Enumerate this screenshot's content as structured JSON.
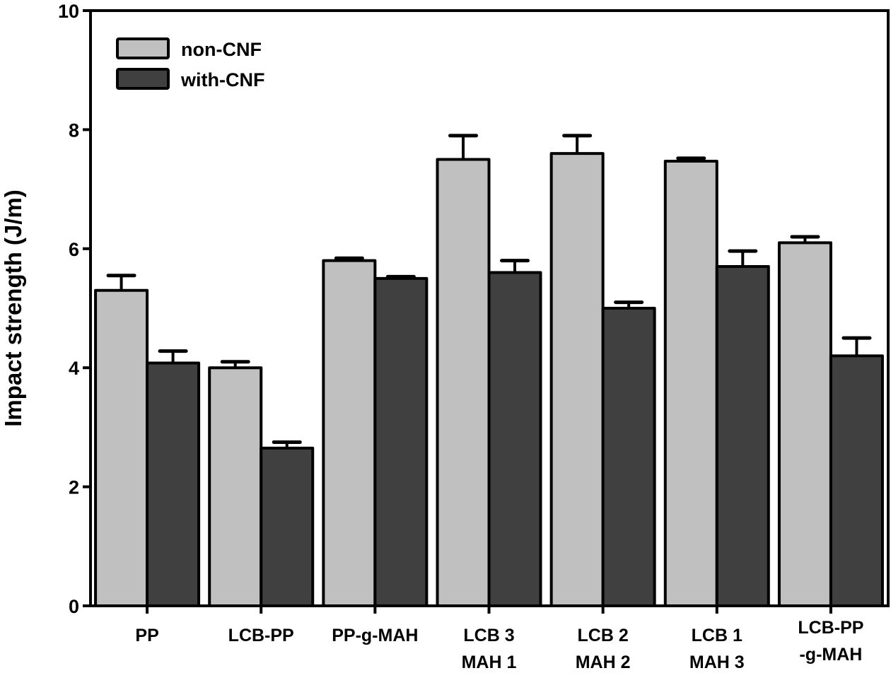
{
  "chart_data": {
    "type": "bar",
    "title": "",
    "xlabel": "",
    "ylabel": "Impact strength (J/m)",
    "ylim": [
      0,
      10
    ],
    "yticks": [
      0,
      2,
      4,
      6,
      8,
      10
    ],
    "grid": false,
    "legend_position": "top-left",
    "categories": [
      [
        "PP"
      ],
      [
        "LCB-PP"
      ],
      [
        "PP-g-MAH"
      ],
      [
        "LCB 3",
        "MAH 1"
      ],
      [
        "LCB 2",
        "MAH 2"
      ],
      [
        "LCB 1",
        "MAH 3"
      ],
      [
        "LCB-PP",
        "-g-MAH"
      ]
    ],
    "series": [
      {
        "name": "non-CNF",
        "color": "#c0c0c0",
        "values": [
          5.3,
          4.0,
          5.8,
          7.5,
          7.6,
          7.47,
          6.1
        ],
        "errors": [
          0.25,
          0.1,
          0.04,
          0.4,
          0.3,
          0.05,
          0.1
        ]
      },
      {
        "name": "with-CNF",
        "color": "#404040",
        "values": [
          4.08,
          2.65,
          5.5,
          5.6,
          5.0,
          5.7,
          4.2
        ],
        "errors": [
          0.2,
          0.1,
          0.03,
          0.2,
          0.1,
          0.26,
          0.3
        ]
      }
    ]
  }
}
